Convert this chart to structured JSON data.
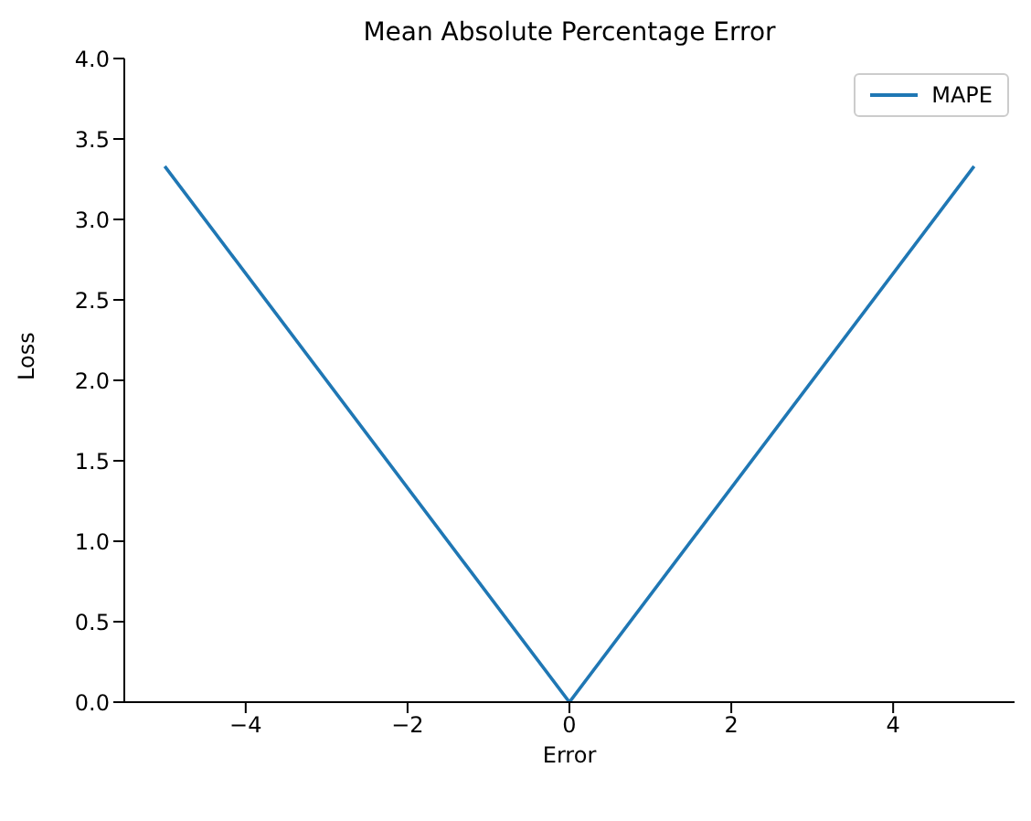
{
  "chart_data": {
    "type": "line",
    "title": "Mean Absolute Percentage Error",
    "xlabel": "Error",
    "ylabel": "Loss",
    "x": [
      -5,
      0,
      5
    ],
    "series": [
      {
        "name": "MAPE",
        "color": "#1f77b4",
        "values": [
          3.33,
          0,
          3.33
        ]
      }
    ],
    "xlim": [
      -5.5,
      5.5
    ],
    "xticks": [
      {
        "value": -4,
        "label": "−4"
      },
      {
        "value": -2,
        "label": "−2"
      },
      0,
      2,
      4
    ],
    "ylim": [
      0,
      4
    ],
    "yticks": [
      {
        "value": 0,
        "label": "0.0"
      },
      0.5,
      {
        "value": 1,
        "label": "1.0"
      },
      1.5,
      {
        "value": 2,
        "label": "2.0"
      },
      2.5,
      {
        "value": 3,
        "label": "3.0"
      },
      3.5,
      {
        "value": 4,
        "label": "4.0"
      }
    ],
    "legend": "top right",
    "grid": false,
    "marker": "none",
    "line_style": "solid"
  }
}
